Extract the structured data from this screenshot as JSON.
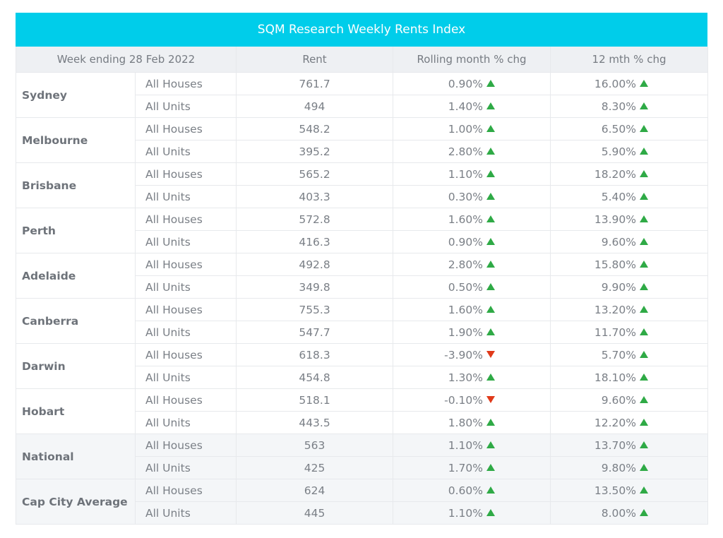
{
  "title": "SQM Research Weekly Rents Index",
  "headers": [
    "Week ending 28 Feb 2022",
    "Rent",
    "Rolling month % chg",
    "12 mth % chg"
  ],
  "colors": {
    "title_bar": "#00cdea",
    "up": "#2faa46",
    "down": "#e03a1a",
    "header_bg": "#eef0f3",
    "shaded_bg": "#f4f6f8"
  },
  "icons": {
    "up": "triangle-up-icon",
    "down": "triangle-down-icon"
  },
  "chart_data": {
    "type": "table",
    "title": "SQM Research Weekly Rents Index",
    "columns": [
      "Week ending 28 Feb 2022",
      "Rent",
      "Rolling month % chg",
      "12 mth % chg"
    ],
    "groups": [
      {
        "city": "Sydney",
        "rows": [
          {
            "type": "All Houses",
            "rent": "761.7",
            "month": "0.90%",
            "month_dir": "up",
            "year": "16.00%",
            "year_dir": "up"
          },
          {
            "type": "All Units",
            "rent": "494",
            "month": "1.40%",
            "month_dir": "up",
            "year": "8.30%",
            "year_dir": "up"
          }
        ]
      },
      {
        "city": "Melbourne",
        "rows": [
          {
            "type": "All Houses",
            "rent": "548.2",
            "month": "1.00%",
            "month_dir": "up",
            "year": "6.50%",
            "year_dir": "up"
          },
          {
            "type": "All Units",
            "rent": "395.2",
            "month": "2.80%",
            "month_dir": "up",
            "year": "5.90%",
            "year_dir": "up"
          }
        ]
      },
      {
        "city": "Brisbane",
        "rows": [
          {
            "type": "All Houses",
            "rent": "565.2",
            "month": "1.10%",
            "month_dir": "up",
            "year": "18.20%",
            "year_dir": "up"
          },
          {
            "type": "All Units",
            "rent": "403.3",
            "month": "0.30%",
            "month_dir": "up",
            "year": "5.40%",
            "year_dir": "up"
          }
        ]
      },
      {
        "city": "Perth",
        "rows": [
          {
            "type": "All Houses",
            "rent": "572.8",
            "month": "1.60%",
            "month_dir": "up",
            "year": "13.90%",
            "year_dir": "up"
          },
          {
            "type": "All Units",
            "rent": "416.3",
            "month": "0.90%",
            "month_dir": "up",
            "year": "9.60%",
            "year_dir": "up"
          }
        ]
      },
      {
        "city": "Adelaide",
        "rows": [
          {
            "type": "All Houses",
            "rent": "492.8",
            "month": "2.80%",
            "month_dir": "up",
            "year": "15.80%",
            "year_dir": "up"
          },
          {
            "type": "All Units",
            "rent": "349.8",
            "month": "0.50%",
            "month_dir": "up",
            "year": "9.90%",
            "year_dir": "up"
          }
        ]
      },
      {
        "city": "Canberra",
        "rows": [
          {
            "type": "All Houses",
            "rent": "755.3",
            "month": "1.60%",
            "month_dir": "up",
            "year": "13.20%",
            "year_dir": "up"
          },
          {
            "type": "All Units",
            "rent": "547.7",
            "month": "1.90%",
            "month_dir": "up",
            "year": "11.70%",
            "year_dir": "up"
          }
        ]
      },
      {
        "city": "Darwin",
        "rows": [
          {
            "type": "All Houses",
            "rent": "618.3",
            "month": "-3.90%",
            "month_dir": "down",
            "year": "5.70%",
            "year_dir": "up"
          },
          {
            "type": "All Units",
            "rent": "454.8",
            "month": "1.30%",
            "month_dir": "up",
            "year": "18.10%",
            "year_dir": "up"
          }
        ]
      },
      {
        "city": "Hobart",
        "rows": [
          {
            "type": "All Houses",
            "rent": "518.1",
            "month": "-0.10%",
            "month_dir": "down",
            "year": "9.60%",
            "year_dir": "up"
          },
          {
            "type": "All Units",
            "rent": "443.5",
            "month": "1.80%",
            "month_dir": "up",
            "year": "12.20%",
            "year_dir": "up"
          }
        ]
      },
      {
        "city": "National",
        "shaded": true,
        "rows": [
          {
            "type": "All Houses",
            "rent": "563",
            "month": "1.10%",
            "month_dir": "up",
            "year": "13.70%",
            "year_dir": "up"
          },
          {
            "type": "All Units",
            "rent": "425",
            "month": "1.70%",
            "month_dir": "up",
            "year": "9.80%",
            "year_dir": "up"
          }
        ]
      },
      {
        "city": "Cap City Average",
        "shaded": true,
        "rows": [
          {
            "type": "All Houses",
            "rent": "624",
            "month": "0.60%",
            "month_dir": "up",
            "year": "13.50%",
            "year_dir": "up"
          },
          {
            "type": "All Units",
            "rent": "445",
            "month": "1.10%",
            "month_dir": "up",
            "year": "8.00%",
            "year_dir": "up"
          }
        ]
      }
    ]
  }
}
